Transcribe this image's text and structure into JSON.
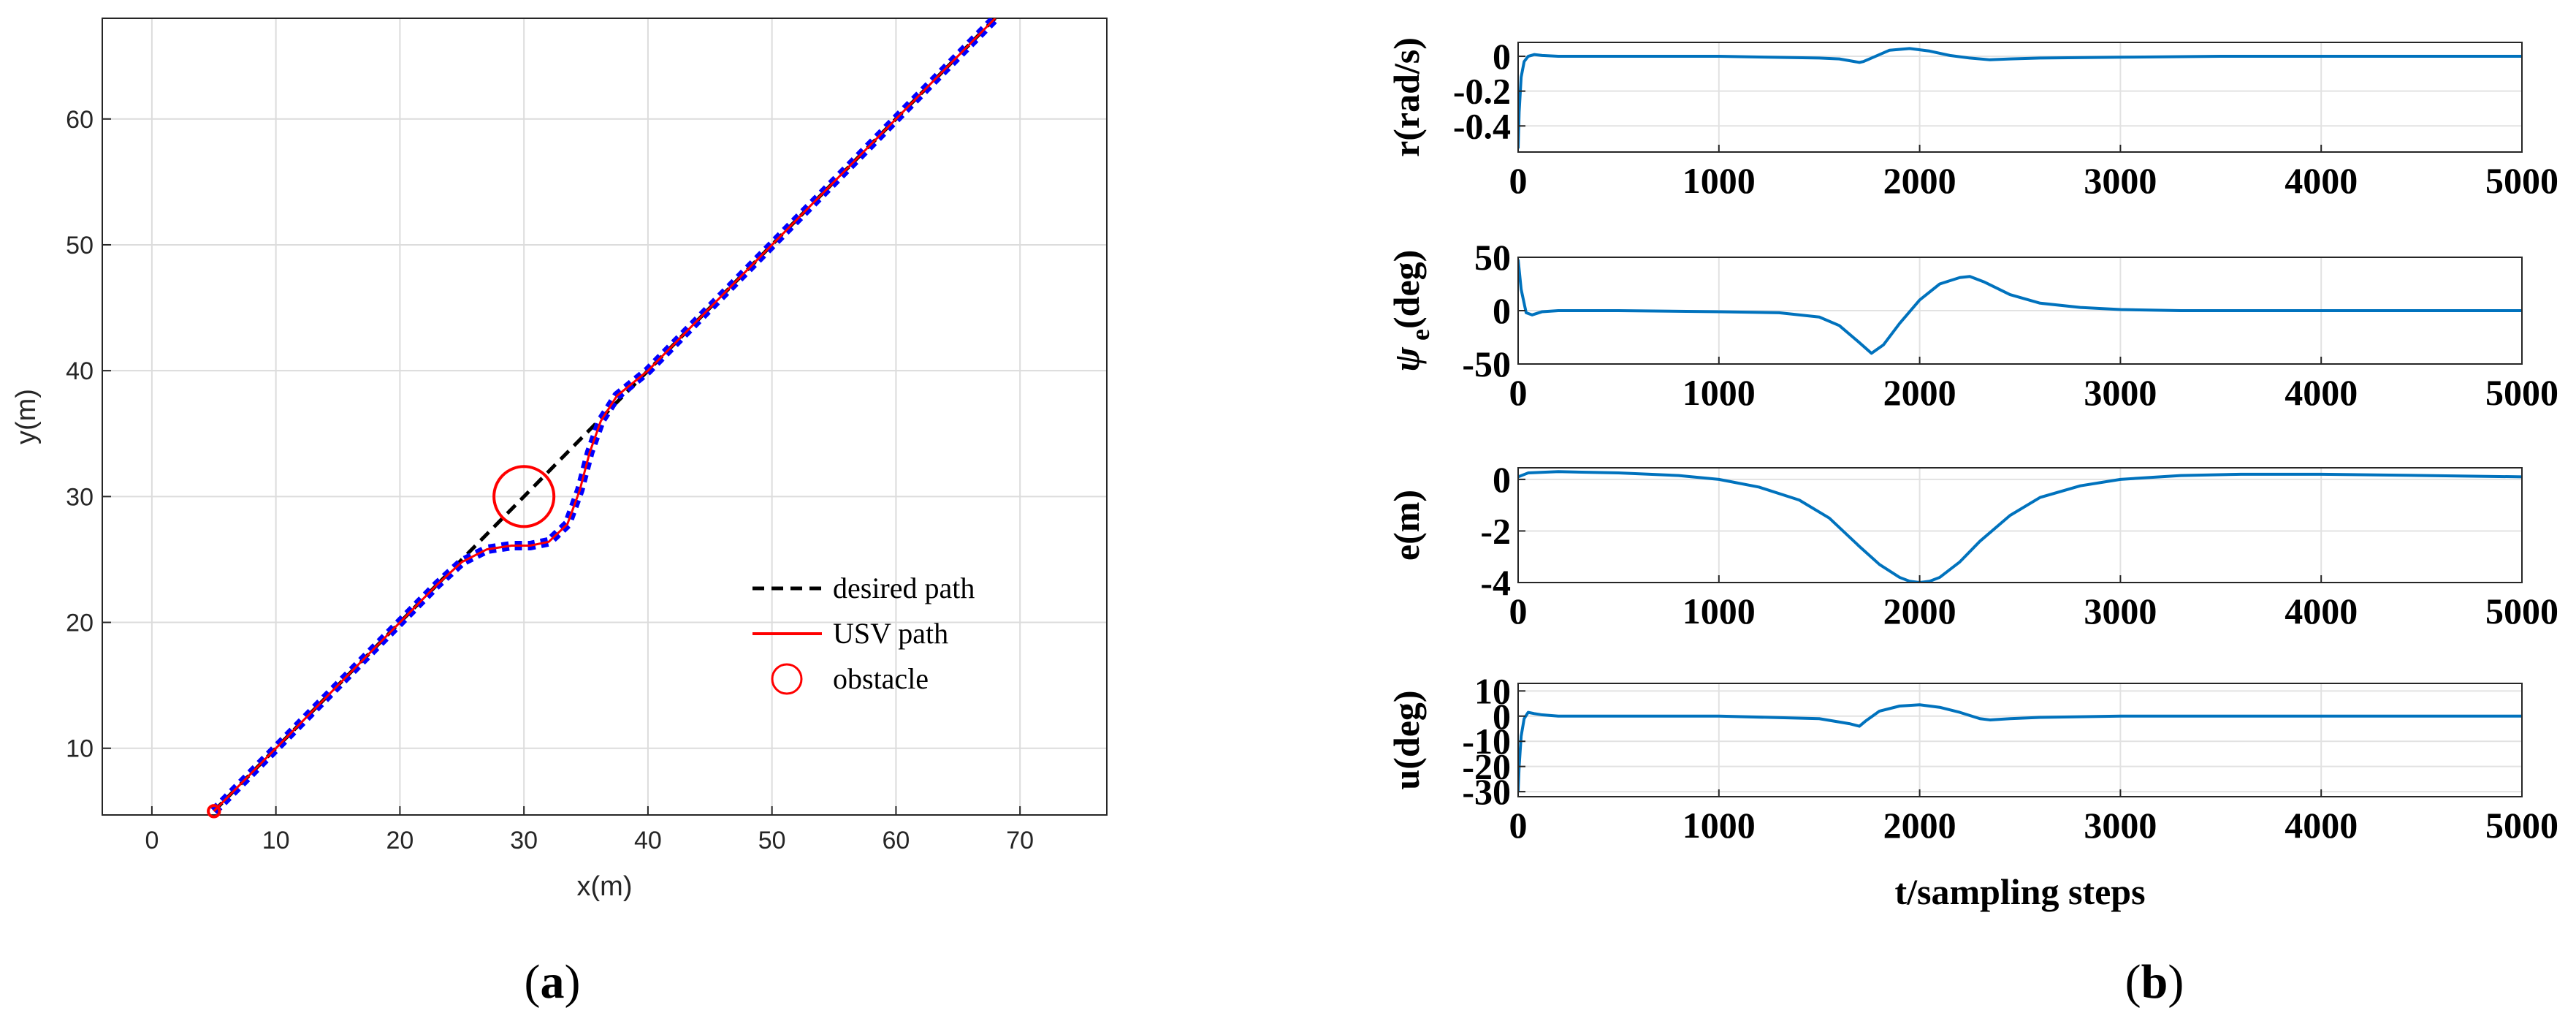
{
  "chart_data": [
    {
      "id": "a",
      "type": "line",
      "panel_label": "(a)",
      "caption_letter": "a",
      "xlabel": "x(m)",
      "ylabel": "y(m)",
      "xlim": [
        -4,
        77
      ],
      "ylim": [
        4.7,
        68
      ],
      "xticks": [
        0,
        10,
        20,
        30,
        40,
        50,
        60,
        70
      ],
      "yticks": [
        10,
        20,
        30,
        40,
        50,
        60
      ],
      "grid": true,
      "legend": {
        "placement": "bottom-right",
        "entries": [
          "desired path",
          "USV path",
          "obstacle"
        ]
      },
      "series": [
        {
          "name": "desired path",
          "style": "dashed",
          "color": "#000000",
          "x": [
            5,
            68
          ],
          "y": [
            5,
            68
          ]
        },
        {
          "name": "USV path",
          "style": "solid",
          "color": "#ff0000",
          "marker_color": "#0000ff",
          "x": [
            5,
            10,
            15,
            20,
            23,
            25,
            27,
            29,
            30.5,
            32,
            33.5,
            34.5,
            35.3,
            36.2,
            37.5,
            40,
            45,
            50,
            55,
            60,
            65,
            68
          ],
          "y": [
            5,
            10,
            15,
            20,
            23,
            24.8,
            25.8,
            26.1,
            26.1,
            26.4,
            27.8,
            30.5,
            33.5,
            36,
            38,
            40,
            45,
            50,
            55,
            60,
            65,
            68
          ]
        }
      ],
      "obstacles": [
        {
          "name": "obstacle",
          "x": 30,
          "y": 30,
          "radius": 2.4,
          "color": "#ff0000"
        },
        {
          "name": "start-marker",
          "x": 5,
          "y": 5,
          "radius": 0.45,
          "color": "#ff0000"
        }
      ]
    },
    {
      "id": "b",
      "type": "line",
      "panel_label": "(b)",
      "caption_letter": "b",
      "xlabel": "t/sampling steps",
      "line_color": "#0072bd",
      "subplots": [
        {
          "ylabel": "r(rad/s)",
          "xlim": [
            0,
            5000
          ],
          "ylim": [
            -0.55,
            0.08
          ],
          "yticks": [
            0,
            -0.2,
            -0.4
          ],
          "ytick_labels": [
            "0",
            "-0.2",
            "-0.4"
          ],
          "xticks": [
            0,
            1000,
            2000,
            3000,
            4000,
            5000
          ],
          "x": [
            0,
            5,
            15,
            30,
            50,
            80,
            120,
            200,
            500,
            1000,
            1500,
            1600,
            1650,
            1700,
            1720,
            1780,
            1850,
            1950,
            2050,
            2150,
            2250,
            2350,
            2450,
            2600,
            3000,
            3500,
            4000,
            5000
          ],
          "y": [
            -0.53,
            -0.32,
            -0.12,
            -0.03,
            0.0,
            0.01,
            0.005,
            0.0,
            0.0,
            0.0,
            -0.01,
            -0.015,
            -0.025,
            -0.035,
            -0.03,
            0.0,
            0.035,
            0.045,
            0.03,
            0.005,
            -0.01,
            -0.02,
            -0.015,
            -0.01,
            -0.005,
            0.0,
            0.0,
            0.0
          ]
        },
        {
          "ylabel": "ψ e(deg)",
          "ylabel_main": "ψ",
          "ylabel_sub": "e",
          "ylabel_rest": "(deg)",
          "xlim": [
            0,
            5000
          ],
          "ylim": [
            -50,
            50
          ],
          "yticks": [
            50,
            0,
            -50
          ],
          "ytick_labels": [
            "50",
            "0",
            "-50"
          ],
          "xticks": [
            0,
            1000,
            2000,
            3000,
            4000,
            5000
          ],
          "x": [
            0,
            15,
            40,
            70,
            120,
            200,
            500,
            1000,
            1300,
            1500,
            1600,
            1700,
            1760,
            1820,
            1900,
            2000,
            2100,
            2200,
            2250,
            2320,
            2450,
            2600,
            2800,
            3000,
            3300,
            4000,
            5000
          ],
          "y": [
            48,
            20,
            -2,
            -4,
            -1,
            0,
            0,
            -1,
            -2,
            -6,
            -14,
            -30,
            -40,
            -32,
            -12,
            10,
            25,
            31,
            32,
            27,
            15,
            7,
            3,
            1,
            0,
            0,
            0
          ]
        },
        {
          "ylabel": "e(m)",
          "xlim": [
            0,
            5000
          ],
          "ylim": [
            -4,
            0.45
          ],
          "yticks": [
            0,
            -2,
            -4
          ],
          "ytick_labels": [
            "0",
            "-2",
            "-4"
          ],
          "xticks": [
            0,
            1000,
            2000,
            3000,
            4000,
            5000
          ],
          "x": [
            0,
            50,
            200,
            500,
            800,
            1000,
            1200,
            1400,
            1550,
            1700,
            1800,
            1900,
            1950,
            2000,
            2050,
            2100,
            2200,
            2300,
            2450,
            2600,
            2800,
            3000,
            3300,
            3600,
            4000,
            5000
          ],
          "y": [
            0.1,
            0.25,
            0.3,
            0.25,
            0.15,
            0.0,
            -0.3,
            -0.8,
            -1.5,
            -2.6,
            -3.3,
            -3.8,
            -3.95,
            -4.0,
            -3.95,
            -3.8,
            -3.2,
            -2.4,
            -1.4,
            -0.7,
            -0.25,
            0.0,
            0.15,
            0.2,
            0.2,
            0.1
          ]
        },
        {
          "ylabel": "u(deg)",
          "xlim": [
            0,
            5000
          ],
          "ylim": [
            -32,
            13
          ],
          "yticks": [
            10,
            0,
            -10,
            -20,
            -30
          ],
          "ytick_labels": [
            "10",
            "0",
            "-10",
            "-20",
            "-30"
          ],
          "xticks": [
            0,
            1000,
            2000,
            3000,
            4000,
            5000
          ],
          "x": [
            0,
            5,
            15,
            30,
            50,
            80,
            120,
            200,
            500,
            1000,
            1500,
            1650,
            1700,
            1730,
            1800,
            1900,
            2000,
            2100,
            2200,
            2300,
            2350,
            2450,
            2600,
            3000,
            3500,
            4000,
            5000
          ],
          "y": [
            -30,
            -20,
            -8,
            -1,
            1.5,
            1,
            0.5,
            0,
            0,
            0,
            -1,
            -3,
            -4,
            -2,
            2,
            4,
            4.5,
            3.5,
            1.5,
            -1,
            -1.5,
            -1,
            -0.5,
            0,
            0,
            0,
            0
          ]
        }
      ]
    }
  ]
}
